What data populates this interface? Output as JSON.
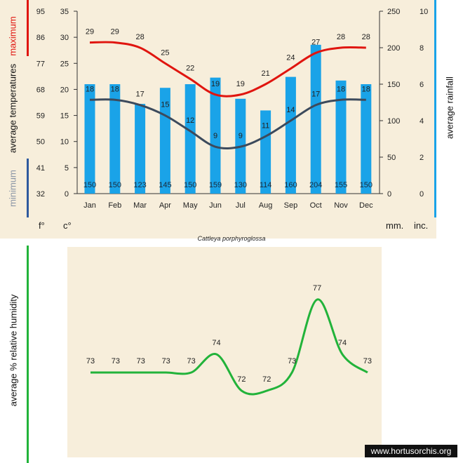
{
  "chart_data": [
    {
      "type": "bar+line",
      "title": "",
      "categories": [
        "Jan",
        "Feb",
        "Mar",
        "Apr",
        "May",
        "Jun",
        "Jul",
        "Aug",
        "Sep",
        "Oct",
        "Nov",
        "Dec"
      ],
      "rainfall_mm": {
        "name": "average rainfall",
        "values": [
          150,
          150,
          123,
          145,
          150,
          159,
          130,
          114,
          160,
          204,
          155,
          150
        ],
        "color": "#1aa3e8"
      },
      "max_temp_c": {
        "name": "maximum",
        "values": [
          29,
          29,
          28,
          25,
          22,
          19,
          19,
          21,
          24,
          27,
          28,
          28
        ],
        "color": "#e0150f"
      },
      "min_temp_c": {
        "name": "minimum",
        "values": [
          18,
          18,
          17,
          15,
          12,
          9,
          9,
          11,
          14,
          17,
          18,
          18
        ],
        "color": "#3c4a5c"
      },
      "axes": {
        "c_ticks": [
          "35",
          "30",
          "25",
          "20",
          "15",
          "10",
          "5",
          "0"
        ],
        "f_ticks": [
          "95",
          "86",
          "77",
          "68",
          "59",
          "50",
          "41",
          "32"
        ],
        "mm_ticks": [
          "250",
          "200",
          "150",
          "100",
          "50",
          "0"
        ],
        "inc_ticks": [
          "10",
          "8",
          "6",
          "4",
          "2",
          "0"
        ],
        "c_range": [
          0,
          35
        ],
        "mm_range": [
          0,
          250
        ],
        "f_unit": "f°",
        "c_unit": "c°",
        "mm_unit": "mm.",
        "inc_unit": "inc.",
        "ylabel_left": "average  temperatures",
        "label_max": "maximum",
        "label_min": "minimum",
        "ylabel_right": "average rainfall"
      }
    },
    {
      "type": "line",
      "categories": [
        "Jan",
        "Feb",
        "Mar",
        "Apr",
        "May",
        "Jun",
        "Jul",
        "Aug",
        "Sep",
        "Oct",
        "Nov",
        "Dec"
      ],
      "series": [
        {
          "name": "average % relative humidity",
          "values": [
            73,
            73,
            73,
            73,
            73,
            74,
            72,
            72,
            73,
            77,
            74,
            73
          ],
          "color": "#22b33a"
        }
      ],
      "ylabel": "average %  relative humidity"
    }
  ],
  "species": "Cattleya porphyroglossa",
  "watermark": "www.hortusorchis.org"
}
